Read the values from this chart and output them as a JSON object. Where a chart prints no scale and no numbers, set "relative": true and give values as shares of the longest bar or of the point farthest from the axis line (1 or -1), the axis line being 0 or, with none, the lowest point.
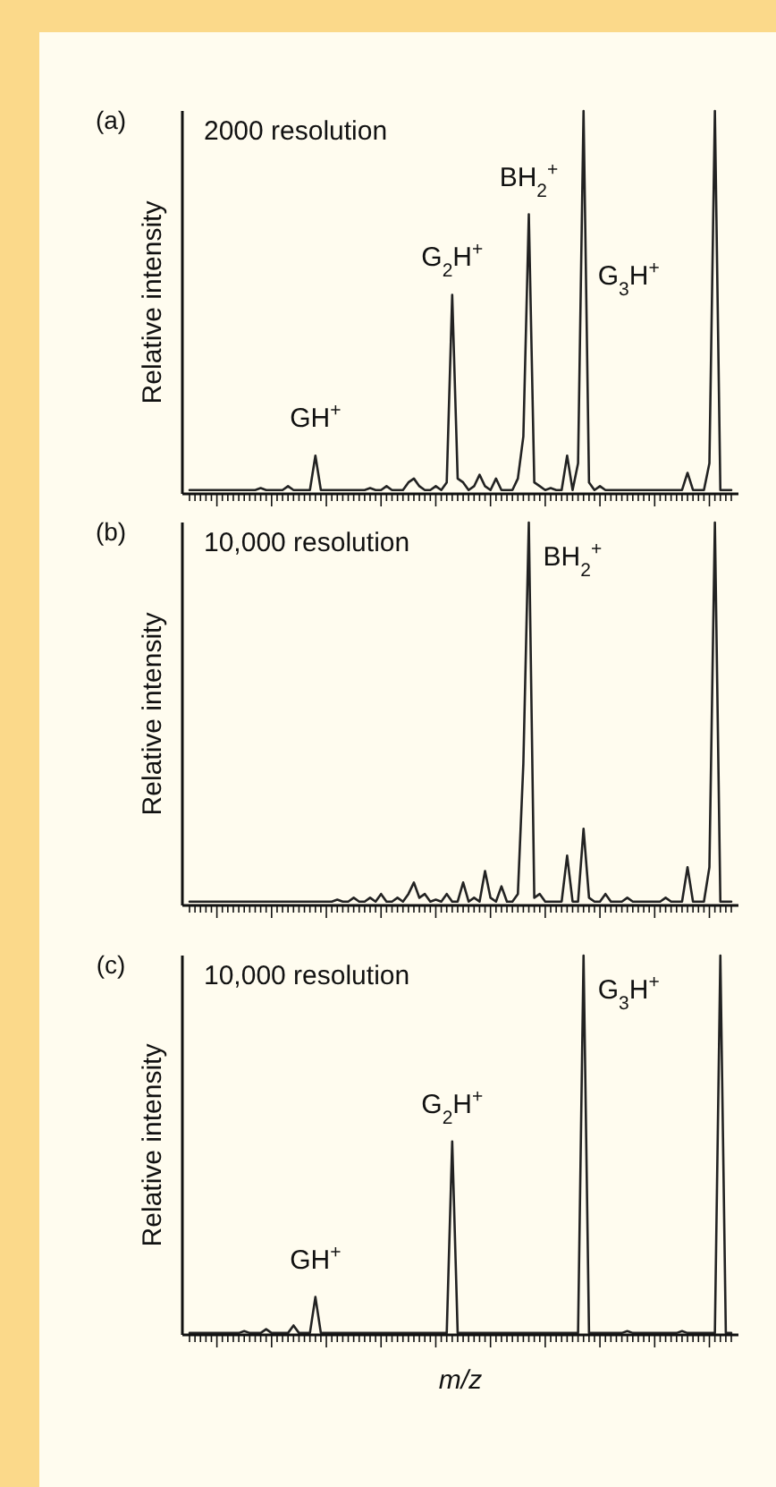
{
  "chart_data": [
    {
      "type": "line",
      "title": "(a)",
      "ylabel": "Relative intensity",
      "relative": true,
      "annotations": [
        "2000 resolution",
        {
          "text": "GH$^{+}$",
          "y": 0.1
        },
        {
          "text": "G$_{2}$H$^{+}$",
          "y": 0.52
        },
        {
          "text": "BH$_{2}$$^{+}$",
          "y": 0.73
        },
        "G$_{3}$H$^{+}$"
      ],
      "categories": [
        null,
        null,
        null,
        null,
        null,
        null,
        null,
        null,
        null,
        null,
        null,
        null,
        null,
        null,
        null,
        null,
        null,
        null,
        null,
        null,
        null,
        null,
        null,
        null,
        null,
        null,
        null,
        null,
        null,
        null,
        null,
        null,
        null,
        null,
        null,
        null,
        null,
        null,
        null,
        null,
        null,
        null,
        null,
        null,
        null,
        null,
        null,
        null,
        null,
        null,
        null,
        null,
        null,
        null,
        null,
        null,
        null,
        null,
        null,
        null,
        null,
        null,
        null,
        null,
        null,
        null,
        null,
        null,
        null,
        null,
        null,
        null,
        null,
        null,
        null,
        null,
        null,
        null,
        null,
        null,
        null,
        null,
        null,
        null,
        null,
        null,
        null,
        null,
        null,
        null,
        null,
        null,
        null,
        null,
        null,
        null,
        null,
        null,
        null,
        null
      ],
      "series": [
        {
          "color": "#222222",
          "values": [
            0.01,
            0.01,
            0.01,
            0.01,
            0.01,
            0.01,
            0.01,
            0.01,
            0.01,
            0.01,
            0.01,
            0.01,
            0.01,
            0.015,
            0.01,
            0.01,
            0.01,
            0.01,
            0.02,
            0.01,
            0.01,
            0.01,
            0.01,
            0.1,
            0.01,
            0.01,
            0.01,
            0.01,
            0.01,
            0.01,
            0.01,
            0.01,
            0.01,
            0.015,
            0.01,
            0.01,
            0.02,
            0.01,
            0.01,
            0.01,
            0.03,
            0.04,
            0.02,
            0.01,
            0.01,
            0.02,
            0.01,
            0.03,
            0.52,
            0.04,
            0.03,
            0.01,
            0.02,
            0.05,
            0.02,
            0.01,
            0.04,
            0.01,
            0.01,
            0.01,
            0.04,
            0.15,
            0.73,
            0.03,
            0.02,
            0.01,
            0.015,
            0.01,
            0.01,
            0.1,
            0.01,
            0.08,
            1,
            0.03,
            0.01,
            0.02,
            0.01,
            0.01,
            0.01,
            0.01,
            0.01,
            0.01,
            0.01,
            0.01,
            0.01,
            0.01,
            0.01,
            0.01,
            0.01,
            0.01,
            0.01,
            0.055,
            0.01,
            0.01,
            0.01,
            0.08,
            1,
            0.01,
            0.01,
            0.01
          ]
        }
      ]
    },
    {
      "type": "line",
      "title": "(b)",
      "ylabel": "Relative intensity",
      "relative": true,
      "annotations": [
        "10,000 resolution",
        "BH$_{2}$$^{+}$"
      ],
      "categories": [
        null,
        null,
        null,
        null,
        null,
        null,
        null,
        null,
        null,
        null,
        null,
        null,
        null,
        null,
        null,
        null,
        null,
        null,
        null,
        null,
        null,
        null,
        null,
        null,
        null,
        null,
        null,
        null,
        null,
        null,
        null,
        null,
        null,
        null,
        null,
        null,
        null,
        null,
        null,
        null,
        null,
        null,
        null,
        null,
        null,
        null,
        null,
        null,
        null,
        null,
        null,
        null,
        null,
        null,
        null,
        null,
        null,
        null,
        null,
        null,
        null,
        null,
        null,
        null,
        null,
        null,
        null,
        null,
        null,
        null,
        null,
        null,
        null,
        null,
        null,
        null,
        null,
        null,
        null,
        null,
        null,
        null,
        null,
        null,
        null,
        null,
        null,
        null,
        null,
        null,
        null,
        null,
        null,
        null,
        null,
        null,
        null,
        null,
        null,
        null
      ],
      "series": [
        {
          "color": "#222222",
          "values": [
            0.01,
            0.01,
            0.01,
            0.01,
            0.01,
            0.01,
            0.01,
            0.01,
            0.01,
            0.01,
            0.01,
            0.01,
            0.01,
            0.01,
            0.01,
            0.01,
            0.01,
            0.01,
            0.01,
            0.01,
            0.01,
            0.01,
            0.01,
            0.01,
            0.01,
            0.01,
            0.01,
            0.015,
            0.01,
            0.01,
            0.02,
            0.01,
            0.01,
            0.02,
            0.01,
            0.03,
            0.01,
            0.01,
            0.02,
            0.01,
            0.03,
            0.06,
            0.02,
            0.03,
            0.01,
            0.015,
            0.01,
            0.03,
            0.01,
            0.01,
            0.06,
            0.01,
            0.02,
            0.01,
            0.09,
            0.02,
            0.01,
            0.05,
            0.01,
            0.01,
            0.03,
            0.37,
            1,
            0.02,
            0.03,
            0.01,
            0.01,
            0.01,
            0.01,
            0.13,
            0.01,
            0.01,
            0.2,
            0.02,
            0.01,
            0.01,
            0.03,
            0.01,
            0.01,
            0.01,
            0.02,
            0.01,
            0.01,
            0.01,
            0.01,
            0.01,
            0.01,
            0.02,
            0.01,
            0.01,
            0.01,
            0.1,
            0.01,
            0.01,
            0.01,
            0.1,
            1,
            0.01,
            0.01,
            0.01
          ]
        }
      ]
    },
    {
      "type": "line",
      "title": "(c)",
      "ylabel": "Relative intensity",
      "xlabel": "m/z",
      "relative": true,
      "annotations": [
        "10,000 resolution",
        {
          "text": "GH$^{+}$",
          "y": 0.1
        },
        {
          "text": "G$_{2}$H$^{+}$",
          "y": 0.51
        },
        "G$_{3}$H$^{+}$"
      ],
      "categories": [
        null,
        null,
        null,
        null,
        null,
        null,
        null,
        null,
        null,
        null,
        null,
        null,
        null,
        null,
        null,
        null,
        null,
        null,
        null,
        null,
        null,
        null,
        null,
        null,
        null,
        null,
        null,
        null,
        null,
        null,
        null,
        null,
        null,
        null,
        null,
        null,
        null,
        null,
        null,
        null,
        null,
        null,
        null,
        null,
        null,
        null,
        null,
        null,
        null,
        null,
        null,
        null,
        null,
        null,
        null,
        null,
        null,
        null,
        null,
        null,
        null,
        null,
        null,
        null,
        null,
        null,
        null,
        null,
        null,
        null,
        null,
        null,
        null,
        null,
        null,
        null,
        null,
        null,
        null,
        null,
        null,
        null,
        null,
        null,
        null,
        null,
        null,
        null,
        null,
        null,
        null,
        null,
        null,
        null,
        null,
        null,
        null,
        null,
        null,
        null
      ],
      "series": [
        {
          "color": "#222222",
          "values": [
            0.005,
            0.005,
            0.005,
            0.005,
            0.005,
            0.005,
            0.005,
            0.005,
            0.005,
            0.005,
            0.01,
            0.005,
            0.005,
            0.005,
            0.015,
            0.005,
            0.005,
            0.005,
            0.005,
            0.025,
            0.005,
            0.005,
            0.005,
            0.1,
            0.005,
            0.005,
            0.005,
            0.005,
            0.005,
            0.005,
            0.005,
            0.005,
            0.005,
            0.005,
            0.005,
            0.005,
            0.005,
            0.005,
            0.005,
            0.005,
            0.005,
            0.005,
            0.005,
            0.005,
            0.005,
            0.005,
            0.005,
            0.005,
            0.51,
            0.005,
            0.005,
            0.005,
            0.005,
            0.005,
            0.005,
            0.005,
            0.005,
            0.005,
            0.005,
            0.005,
            0.005,
            0.005,
            0.005,
            0.005,
            0.005,
            0.005,
            0.005,
            0.005,
            0.005,
            0.005,
            0.005,
            0.005,
            1,
            0.005,
            0.005,
            0.005,
            0.005,
            0.005,
            0.005,
            0.005,
            0.01,
            0.005,
            0.005,
            0.005,
            0.005,
            0.005,
            0.005,
            0.005,
            0.005,
            0.005,
            0.01,
            0.005,
            0.005,
            0.005,
            0.005,
            0.005,
            0.005,
            1,
            0.005,
            0.005
          ]
        }
      ]
    }
  ]
}
